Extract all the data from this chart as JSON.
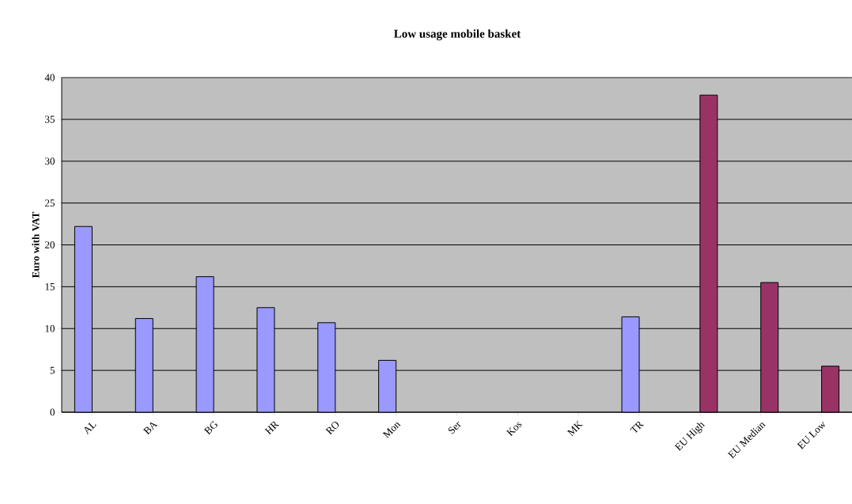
{
  "chart_data": {
    "type": "bar",
    "title": "Low usage mobile basket",
    "ylabel": "Euro with VAT",
    "categories": [
      "AL",
      "BA",
      "BG",
      "HR",
      "RO",
      "Mon",
      "Ser",
      "Kos",
      "MK",
      "TR",
      "EU High",
      "EU Median",
      "EU Low"
    ],
    "series": [
      {
        "color": "#9999ff",
        "values": [
          22.2,
          11.2,
          16.2,
          12.5,
          10.7,
          6.2,
          null,
          null,
          null,
          11.4,
          null,
          null,
          null
        ]
      },
      {
        "color": "#993366",
        "values": [
          null,
          null,
          null,
          null,
          null,
          null,
          null,
          null,
          null,
          null,
          37.9,
          15.5,
          5.5
        ]
      }
    ],
    "ylim": [
      0,
      40
    ],
    "yticks": [
      0,
      5,
      10,
      15,
      20,
      25,
      30,
      35,
      40
    ],
    "grid": "y"
  }
}
